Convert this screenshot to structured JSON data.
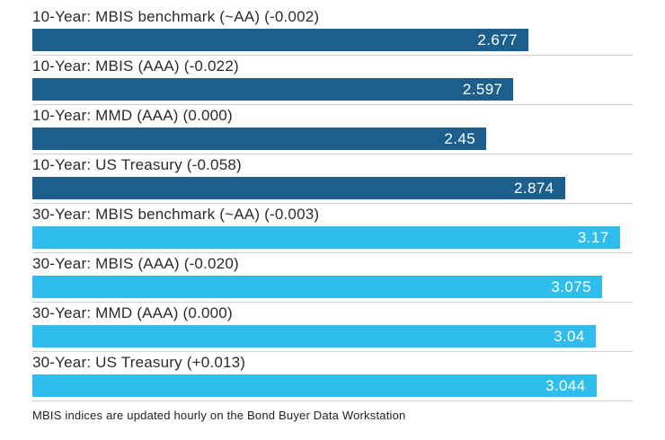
{
  "chart_data": {
    "type": "bar",
    "orientation": "horizontal",
    "title": "",
    "xlabel": "",
    "ylabel": "",
    "xlim": [
      0,
      3.24
    ],
    "grid": "row-separator-lines",
    "legend": "none",
    "colors": {
      "10-year": "#1d5f8c",
      "30-year": "#2fbdee"
    },
    "rows": [
      {
        "label": "10-Year: MBIS benchmark (~AA) (-0.002)",
        "value": 2.677,
        "display": "2.677",
        "group": "10-year"
      },
      {
        "label": "10-Year: MBIS (AAA) (-0.022)",
        "value": 2.597,
        "display": "2.597",
        "group": "10-year"
      },
      {
        "label": "10-Year: MMD (AAA) (0.000)",
        "value": 2.45,
        "display": "2.45",
        "group": "10-year"
      },
      {
        "label": "10-Year: US Treasury (-0.058)",
        "value": 2.874,
        "display": "2.874",
        "group": "10-year"
      },
      {
        "label": "30-Year: MBIS benchmark (~AA) (-0.003)",
        "value": 3.17,
        "display": "3.17",
        "group": "30-year"
      },
      {
        "label": "30-Year: MBIS (AAA) (-0.020)",
        "value": 3.075,
        "display": "3.075",
        "group": "30-year"
      },
      {
        "label": "30-Year: MMD (AAA) (0.000)",
        "value": 3.04,
        "display": "3.04",
        "group": "30-year"
      },
      {
        "label": "30-Year: US Treasury (+0.013)",
        "value": 3.044,
        "display": "3.044",
        "group": "30-year"
      }
    ]
  },
  "footer": {
    "text": "MBIS indices are updated hourly on the Bond Buyer Data Workstation"
  }
}
